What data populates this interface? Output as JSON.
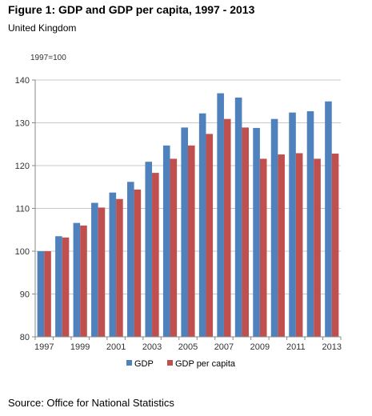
{
  "title": "Figure 1: GDP and GDP per capita, 1997 - 2013",
  "subtitle": "United Kingdom",
  "source": "Source: Office for National Statistics",
  "colors": {
    "gdp": "#4f81bd",
    "gdp_per_capita": "#c0504d",
    "grid": "#c8c8c8",
    "axis": "#888888"
  },
  "chart_data": {
    "type": "bar",
    "unit_label": "1997=100",
    "categories": [
      "1997",
      "1998",
      "1999",
      "2000",
      "2001",
      "2002",
      "2003",
      "2004",
      "2005",
      "2006",
      "2007",
      "2008",
      "2009",
      "2010",
      "2011",
      "2012",
      "2013"
    ],
    "x_tick_labels": [
      "1997",
      "1999",
      "2001",
      "2003",
      "2005",
      "2007",
      "2009",
      "2011",
      "2013"
    ],
    "series": [
      {
        "name": "GDP",
        "values": [
          100,
          103.5,
          106.6,
          111.3,
          113.7,
          116.2,
          120.9,
          124.7,
          128.9,
          132.2,
          136.9,
          135.9,
          128.8,
          130.9,
          132.4,
          132.7,
          135.0
        ]
      },
      {
        "name": "GDP per capita",
        "values": [
          100,
          103.2,
          106.0,
          110.2,
          112.2,
          114.4,
          118.3,
          121.6,
          124.7,
          127.4,
          130.9,
          128.9,
          121.6,
          122.6,
          122.9,
          121.6,
          122.8
        ]
      }
    ],
    "ylim": [
      80,
      140
    ],
    "yticks": [
      80,
      90,
      100,
      110,
      120,
      130,
      140
    ],
    "grid": true,
    "legend": "bottom"
  }
}
